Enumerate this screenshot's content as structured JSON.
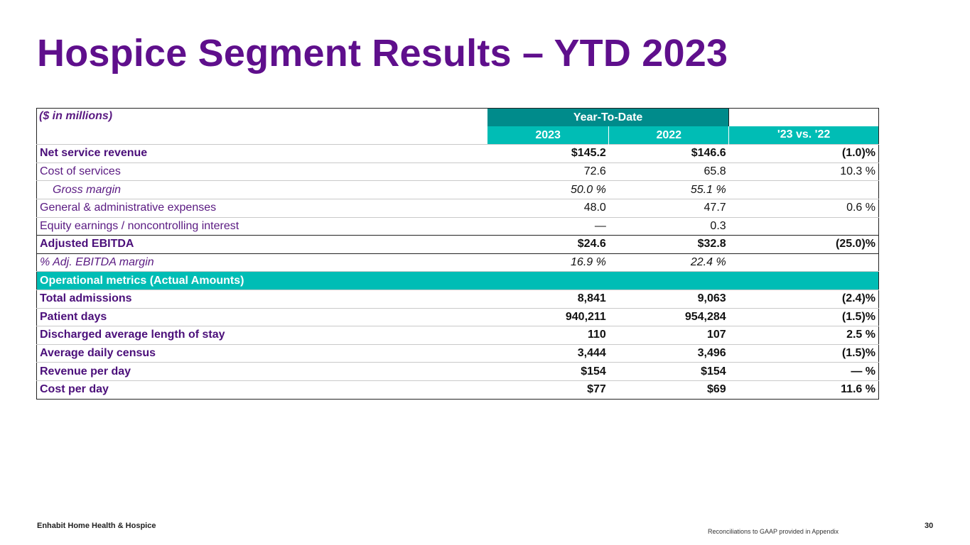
{
  "title": "Hospice Segment Results – YTD 2023",
  "table": {
    "units_label": "($ in millions)",
    "group_header": "Year-To-Date",
    "year_2023": "2023",
    "year_2022": "2022",
    "change_header": "'23 vs. '22",
    "rows": [
      {
        "label": "Net service revenue",
        "v2023": "$145.2",
        "v2022": "$146.6",
        "change": "(1.0)%"
      },
      {
        "label": "Cost of services",
        "v2023": "72.6",
        "v2022": "65.8",
        "change": "10.3 %"
      },
      {
        "label": "Gross margin",
        "v2023": "50.0 %",
        "v2022": "55.1 %",
        "change": ""
      },
      {
        "label": "General & administrative expenses",
        "v2023": "48.0",
        "v2022": "47.7",
        "change": "0.6 %"
      },
      {
        "label": "Equity earnings / noncontrolling interest",
        "v2023": "—",
        "v2022": "0.3",
        "change": ""
      },
      {
        "label": "Adjusted EBITDA",
        "v2023": "$24.6",
        "v2022": "$32.8",
        "change": "(25.0)%"
      },
      {
        "label": "%  Adj. EBITDA margin",
        "v2023": "16.9 %",
        "v2022": "22.4 %",
        "change": ""
      }
    ],
    "ops_header": "Operational metrics (Actual Amounts)",
    "ops_rows": [
      {
        "label": "Total admissions",
        "v2023": "8,841",
        "v2022": "9,063",
        "change": "(2.4)%"
      },
      {
        "label": "Patient days",
        "v2023": "940,211",
        "v2022": "954,284",
        "change": "(1.5)%"
      },
      {
        "label": "Discharged average length of stay",
        "v2023": "110",
        "v2022": "107",
        "change": "2.5 %"
      },
      {
        "label": "Average daily census",
        "v2023": "3,444",
        "v2022": "3,496",
        "change": "(1.5)%"
      },
      {
        "label": "Revenue per day",
        "v2023": "$154",
        "v2022": "$154",
        "change": "— %"
      },
      {
        "label": "Cost per day",
        "v2023": "$77",
        "v2022": "$69",
        "change": "11.6 %"
      }
    ]
  },
  "footer": {
    "company": "Enhabit Home Health & Hospice",
    "note": "Reconciliations to GAAP provided in Appendix",
    "page": "30"
  },
  "colors": {
    "title_purple": "#5f0f8c",
    "header_teal_dark": "#008b8b",
    "header_teal": "#00bdb5"
  }
}
